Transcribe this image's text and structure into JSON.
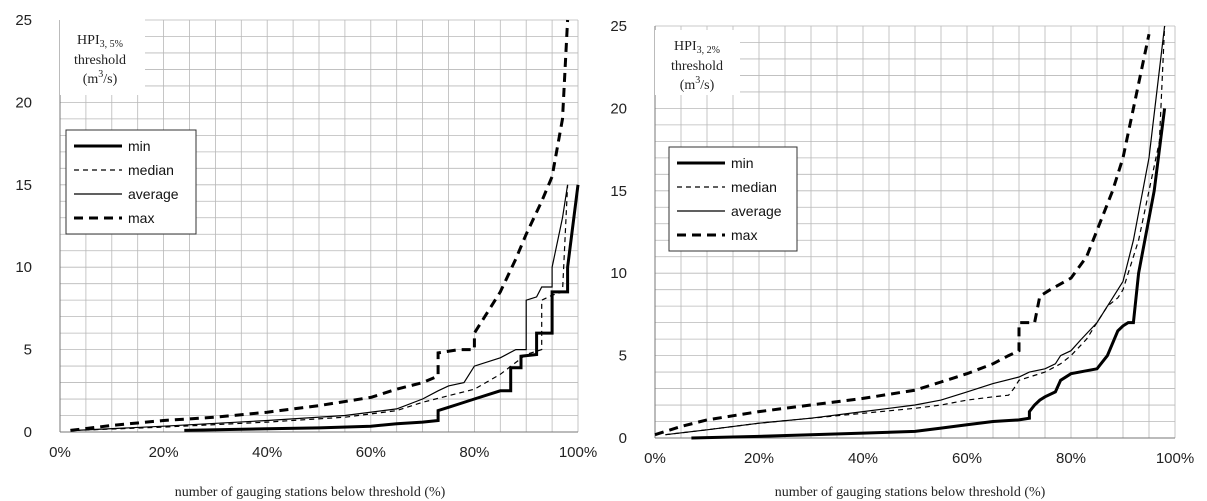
{
  "chart_data": [
    {
      "type": "line",
      "step": true,
      "ylabel": {
        "main": "HPI",
        "subscript": "3, 5%",
        "line2": "threshold",
        "unit_open": "(m",
        "unit_sup": "3",
        "unit_close": "/s)"
      },
      "xlabel": "number of gauging stations below threshold (%)",
      "xlim": [
        0,
        100
      ],
      "ylim": [
        0,
        25
      ],
      "xticks": [
        "0%",
        "20%",
        "40%",
        "60%",
        "80%",
        "100%"
      ],
      "yticks": [
        "0",
        "5",
        "10",
        "15",
        "20",
        "25"
      ],
      "grid": true,
      "legend_position": "upper-left",
      "series": [
        {
          "name": "min",
          "style": "thick-solid",
          "points": [
            [
              24,
              0.1
            ],
            [
              40,
              0.2
            ],
            [
              50,
              0.25
            ],
            [
              60,
              0.35
            ],
            [
              65,
              0.5
            ],
            [
              70,
              0.6
            ],
            [
              73,
              0.7
            ],
            [
              73,
              1.3
            ],
            [
              75,
              1.5
            ],
            [
              77,
              1.7
            ],
            [
              80,
              2
            ],
            [
              85,
              2.5
            ],
            [
              87,
              2.5
            ],
            [
              87,
              3.9
            ],
            [
              89,
              3.9
            ],
            [
              89,
              4.6
            ],
            [
              92,
              4.7
            ],
            [
              92,
              6
            ],
            [
              95,
              6
            ],
            [
              95,
              8.5
            ],
            [
              98,
              8.5
            ],
            [
              98,
              10
            ],
            [
              100,
              15
            ]
          ]
        },
        {
          "name": "median",
          "style": "thin-dashed",
          "points": [
            [
              3,
              0.1
            ],
            [
              20,
              0.3
            ],
            [
              40,
              0.6
            ],
            [
              55,
              0.9
            ],
            [
              65,
              1.3
            ],
            [
              70,
              1.8
            ],
            [
              75,
              2.2
            ],
            [
              80,
              2.6
            ],
            [
              85,
              3.5
            ],
            [
              90,
              4.7
            ],
            [
              93,
              5.0
            ],
            [
              93,
              8.0
            ],
            [
              95,
              8.3
            ],
            [
              97,
              8.5
            ],
            [
              98,
              15
            ]
          ]
        },
        {
          "name": "average",
          "style": "thin-solid",
          "points": [
            [
              3,
              0.1
            ],
            [
              20,
              0.35
            ],
            [
              40,
              0.7
            ],
            [
              55,
              1.0
            ],
            [
              65,
              1.4
            ],
            [
              70,
              2
            ],
            [
              73,
              2.5
            ],
            [
              75,
              2.8
            ],
            [
              78,
              3
            ],
            [
              80,
              4
            ],
            [
              85,
              4.5
            ],
            [
              88,
              5
            ],
            [
              90,
              5
            ],
            [
              90,
              8
            ],
            [
              92,
              8.2
            ],
            [
              93,
              8.8
            ],
            [
              95,
              8.8
            ],
            [
              95,
              10
            ],
            [
              97,
              13
            ],
            [
              98,
              15
            ]
          ]
        },
        {
          "name": "max",
          "style": "thick-dashed",
          "points": [
            [
              2,
              0.1
            ],
            [
              10,
              0.4
            ],
            [
              20,
              0.7
            ],
            [
              30,
              0.9
            ],
            [
              40,
              1.2
            ],
            [
              50,
              1.6
            ],
            [
              60,
              2.1
            ],
            [
              65,
              2.6
            ],
            [
              70,
              3.0
            ],
            [
              73,
              3.4
            ],
            [
              73,
              4.8
            ],
            [
              77,
              5.0
            ],
            [
              80,
              5.0
            ],
            [
              80,
              6
            ],
            [
              82,
              7
            ],
            [
              85,
              8.5
            ],
            [
              88,
              10.5
            ],
            [
              90,
              12
            ],
            [
              93,
              14
            ],
            [
              95,
              15.5
            ],
            [
              97,
              19
            ],
            [
              98,
              25
            ]
          ]
        }
      ]
    },
    {
      "type": "line",
      "step": true,
      "ylabel": {
        "main": "HPI",
        "subscript": "3, 2%",
        "line2": "threshold",
        "unit_open": "(m",
        "unit_sup": "3",
        "unit_close": "/s)"
      },
      "xlabel": "number of gauging stations below threshold (%)",
      "xlim": [
        0,
        100
      ],
      "ylim": [
        0,
        25
      ],
      "xticks": [
        "0%",
        "20%",
        "40%",
        "60%",
        "80%",
        "100%"
      ],
      "yticks": [
        "0",
        "5",
        "10",
        "15",
        "20",
        "25"
      ],
      "grid": true,
      "legend_position": "upper-left",
      "series": [
        {
          "name": "min",
          "style": "thick-solid",
          "points": [
            [
              7,
              0
            ],
            [
              20,
              0.1
            ],
            [
              30,
              0.2
            ],
            [
              40,
              0.3
            ],
            [
              50,
              0.4
            ],
            [
              55,
              0.6
            ],
            [
              60,
              0.8
            ],
            [
              65,
              1
            ],
            [
              70,
              1.1
            ],
            [
              72,
              1.2
            ],
            [
              72,
              1.6
            ],
            [
              73,
              2
            ],
            [
              74,
              2.3
            ],
            [
              75,
              2.5
            ],
            [
              77,
              2.8
            ],
            [
              78,
              3.5
            ],
            [
              80,
              3.9
            ],
            [
              85,
              4.2
            ],
            [
              87,
              5
            ],
            [
              89,
              6.5
            ],
            [
              90,
              6.8
            ],
            [
              91,
              7
            ],
            [
              92,
              7
            ],
            [
              93,
              10
            ],
            [
              96,
              15
            ],
            [
              98,
              20
            ]
          ]
        },
        {
          "name": "median",
          "style": "thin-dashed",
          "points": [
            [
              2,
              0.2
            ],
            [
              10,
              0.5
            ],
            [
              20,
              0.9
            ],
            [
              30,
              1.2
            ],
            [
              40,
              1.5
            ],
            [
              50,
              1.8
            ],
            [
              55,
              2
            ],
            [
              60,
              2.3
            ],
            [
              65,
              2.5
            ],
            [
              68,
              2.6
            ],
            [
              69,
              3
            ],
            [
              70,
              3.5
            ],
            [
              72,
              3.7
            ],
            [
              75,
              4
            ],
            [
              78,
              4.5
            ],
            [
              80,
              5
            ],
            [
              83,
              6
            ],
            [
              85,
              7
            ],
            [
              87,
              8
            ],
            [
              89,
              8.5
            ],
            [
              90,
              9
            ],
            [
              93,
              12
            ],
            [
              95,
              15
            ],
            [
              97,
              18
            ],
            [
              98,
              25
            ]
          ]
        },
        {
          "name": "average",
          "style": "thin-solid",
          "points": [
            [
              2,
              0.2
            ],
            [
              10,
              0.5
            ],
            [
              20,
              0.9
            ],
            [
              30,
              1.2
            ],
            [
              40,
              1.6
            ],
            [
              50,
              2
            ],
            [
              55,
              2.3
            ],
            [
              60,
              2.8
            ],
            [
              65,
              3.3
            ],
            [
              70,
              3.7
            ],
            [
              72,
              4
            ],
            [
              75,
              4.2
            ],
            [
              77,
              4.5
            ],
            [
              78,
              5
            ],
            [
              80,
              5.3
            ],
            [
              82,
              6
            ],
            [
              85,
              7
            ],
            [
              86,
              7.5
            ],
            [
              88,
              8.5
            ],
            [
              89,
              9
            ],
            [
              90,
              9.5
            ],
            [
              92,
              12
            ],
            [
              95,
              17
            ],
            [
              98,
              25
            ]
          ]
        },
        {
          "name": "max",
          "style": "thick-dashed",
          "points": [
            [
              0,
              0.2
            ],
            [
              5,
              0.7
            ],
            [
              10,
              1.1
            ],
            [
              20,
              1.6
            ],
            [
              30,
              2
            ],
            [
              40,
              2.4
            ],
            [
              50,
              2.9
            ],
            [
              55,
              3.4
            ],
            [
              60,
              3.9
            ],
            [
              65,
              4.5
            ],
            [
              68,
              5
            ],
            [
              70,
              5.3
            ],
            [
              70,
              7
            ],
            [
              73,
              7
            ],
            [
              74,
              8.6
            ],
            [
              76,
              9
            ],
            [
              80,
              9.7
            ],
            [
              83,
              11
            ],
            [
              85,
              12.6
            ],
            [
              88,
              15
            ],
            [
              90,
              17
            ],
            [
              92,
              20
            ],
            [
              95,
              24.5
            ]
          ]
        }
      ]
    }
  ]
}
